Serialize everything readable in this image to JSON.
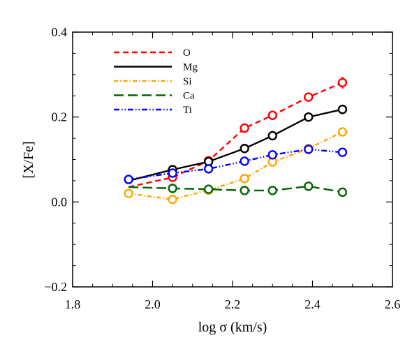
{
  "chart_data": {
    "type": "line",
    "xlabel": "log σ (km/s)",
    "ylabel": "[X/Fe]",
    "xlim": [
      1.8,
      2.6
    ],
    "ylim": [
      -0.2,
      0.4
    ],
    "xticks": [
      1.8,
      2.0,
      2.2,
      2.4,
      2.6
    ],
    "xtick_labels": [
      "1.8",
      "2.0",
      "2.2",
      "2.4",
      "2.6"
    ],
    "yticks": [
      -0.2,
      0.0,
      0.2,
      0.4
    ],
    "ytick_labels": [
      "−0.2",
      "0.0",
      "0.2",
      "0.4"
    ],
    "grid": false,
    "legend_position": "top-left",
    "x": [
      1.94,
      2.05,
      2.14,
      2.23,
      2.3,
      2.39,
      2.475
    ],
    "series": [
      {
        "name": "O",
        "color": "#ff0000",
        "dash": "dashed",
        "marker_from": 1,
        "values": [
          0.035,
          0.058,
          0.097,
          0.174,
          0.204,
          0.247,
          0.281
        ],
        "error": [
          0,
          0,
          0,
          0,
          0,
          0,
          0.014
        ]
      },
      {
        "name": "Mg",
        "color": "#000000",
        "dash": "solid",
        "marker_from": 1,
        "values": [
          0.05,
          0.076,
          0.095,
          0.126,
          0.156,
          0.2,
          0.218
        ]
      },
      {
        "name": "Si",
        "color": "#ffa500",
        "dash": "dash-dot",
        "marker_from": 0,
        "values": [
          0.02,
          0.006,
          0.028,
          0.055,
          0.094,
          0.126,
          0.165
        ]
      },
      {
        "name": "Ca",
        "color": "#006400",
        "dash": "long-dash",
        "marker_from": 1,
        "values": [
          0.035,
          0.032,
          0.03,
          0.027,
          0.027,
          0.037,
          0.023
        ]
      },
      {
        "name": "Ti",
        "color": "#0000ff",
        "dash": "dash-dot-dot",
        "marker_from": 0,
        "values": [
          0.053,
          0.068,
          0.078,
          0.096,
          0.111,
          0.124,
          0.117
        ]
      }
    ]
  }
}
